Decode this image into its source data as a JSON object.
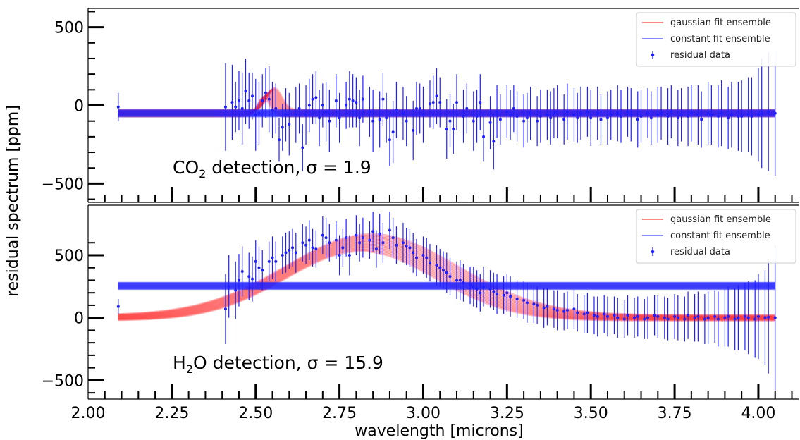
{
  "chart_data": [
    {
      "type": "scatter",
      "panel": "top",
      "annotation": {
        "molecule": "CO",
        "subscript": "2",
        "suffix": " detection, ",
        "sigma_label": "σ = 1.9"
      },
      "ylim": [
        -620,
        620
      ],
      "yticks": [
        -500,
        0,
        500
      ],
      "ytick_labels": [
        "−500",
        "0",
        "500"
      ],
      "xlim": [
        2.0,
        4.12
      ],
      "legend": {
        "placement": "top-right",
        "entries": [
          "gaussian fit ensemble",
          "constant fit ensemble",
          "residual data"
        ]
      },
      "constant_fit": {
        "value": -50,
        "band_width_ppm": 40
      },
      "gaussian_fit": {
        "baseline": -50,
        "amplitude": 130,
        "center": 2.54,
        "sigma_um": 0.02
      },
      "series": [
        {
          "name": "residual data",
          "x": [
            2.09,
            2.41,
            2.43,
            2.44,
            2.45,
            2.46,
            2.47,
            2.48,
            2.49,
            2.5,
            2.51,
            2.52,
            2.53,
            2.54,
            2.55,
            2.56,
            2.57,
            2.58,
            2.59,
            2.6,
            2.62,
            2.63,
            2.64,
            2.65,
            2.66,
            2.67,
            2.68,
            2.69,
            2.7,
            2.71,
            2.72,
            2.74,
            2.75,
            2.77,
            2.78,
            2.79,
            2.8,
            2.81,
            2.82,
            2.84,
            2.85,
            2.87,
            2.88,
            2.89,
            2.9,
            2.91,
            2.92,
            2.94,
            2.95,
            2.97,
            2.98,
            2.99,
            3.0,
            3.02,
            3.03,
            3.04,
            3.05,
            3.07,
            3.08,
            3.09,
            3.1,
            3.12,
            3.13,
            3.15,
            3.16,
            3.17,
            3.18,
            3.2,
            3.21,
            3.22,
            3.23,
            3.25,
            3.26,
            3.27,
            3.28,
            3.3,
            3.31,
            3.32,
            3.34,
            3.35,
            3.37,
            3.38,
            3.39,
            3.4,
            3.42,
            3.43,
            3.45,
            3.46,
            3.47,
            3.49,
            3.5,
            3.52,
            3.53,
            3.55,
            3.56,
            3.58,
            3.59,
            3.61,
            3.62,
            3.64,
            3.65,
            3.67,
            3.68,
            3.7,
            3.71,
            3.73,
            3.74,
            3.76,
            3.77,
            3.79,
            3.8,
            3.82,
            3.83,
            3.85,
            3.86,
            3.88,
            3.89,
            3.91,
            3.92,
            3.94,
            3.95,
            3.97,
            3.98,
            4.0,
            4.01,
            4.03,
            4.05
          ],
          "y": [
            -10,
            -10,
            20,
            -10,
            30,
            -20,
            90,
            30,
            60,
            -60,
            -50,
            30,
            80,
            40,
            -30,
            -20,
            -220,
            -140,
            -60,
            -120,
            -60,
            -20,
            -270,
            -60,
            0,
            40,
            50,
            -80,
            0,
            -40,
            -100,
            30,
            -80,
            0,
            40,
            30,
            20,
            -80,
            40,
            -40,
            -100,
            -90,
            40,
            -80,
            -220,
            -170,
            -30,
            -50,
            -100,
            -160,
            -20,
            -20,
            -60,
            10,
            20,
            60,
            20,
            -150,
            -100,
            -150,
            20,
            -70,
            -20,
            -100,
            -70,
            20,
            -200,
            -110,
            -230,
            -40,
            -90,
            -40,
            -60,
            -20,
            -70,
            -100,
            -80,
            -50,
            -100,
            -70,
            -60,
            -80,
            -50,
            -40,
            -90,
            -40,
            -60,
            -80,
            -50,
            -40,
            -80,
            -50,
            -90,
            -80,
            -60,
            -50,
            -70,
            -40,
            -60,
            -90,
            -70,
            -50,
            -80,
            -60,
            -50,
            -70,
            -40,
            -80,
            -60,
            -70,
            -50,
            -60,
            -90,
            -50,
            -60,
            -70,
            -50,
            -80,
            -60,
            -70,
            -70,
            -60,
            -70,
            -60,
            -50,
            -40,
            -50
          ],
          "yerr": [
            90,
            280,
            240,
            160,
            190,
            230,
            210,
            180,
            150,
            230,
            200,
            170,
            160,
            210,
            180,
            160,
            140,
            150,
            170,
            200,
            180,
            160,
            150,
            190,
            170,
            160,
            170,
            180,
            140,
            190,
            200,
            170,
            160,
            150,
            180,
            170,
            160,
            180,
            150,
            160,
            200,
            180,
            170,
            160,
            170,
            200,
            180,
            170,
            160,
            190,
            170,
            160,
            180,
            150,
            170,
            180,
            160,
            190,
            170,
            160,
            180,
            170,
            160,
            190,
            170,
            180,
            160,
            170,
            180,
            170,
            160,
            170,
            160,
            150,
            160,
            170,
            160,
            170,
            160,
            170,
            160,
            170,
            160,
            170,
            160,
            180,
            170,
            160,
            170,
            160,
            180,
            170,
            160,
            170,
            160,
            180,
            170,
            160,
            170,
            180,
            170,
            160,
            170,
            180,
            170,
            180,
            170,
            180,
            170,
            190,
            180,
            190,
            180,
            200,
            190,
            200,
            210,
            200,
            210,
            220,
            230,
            240,
            250,
            300,
            350,
            380,
            400
          ]
        }
      ]
    },
    {
      "type": "scatter",
      "panel": "bottom",
      "annotation": {
        "molecule": "H",
        "subscript": "2",
        "suffix": "O detection, ",
        "sigma_label": "σ = 15.9"
      },
      "ylim": [
        -650,
        900
      ],
      "yticks": [
        -500,
        0,
        500
      ],
      "ytick_labels": [
        "−500",
        "0",
        "500"
      ],
      "xlim": [
        2.0,
        4.12
      ],
      "xticks": [
        2.0,
        2.25,
        2.5,
        2.75,
        3.0,
        3.25,
        3.5,
        3.75,
        4.0
      ],
      "xtick_labels": [
        "2.00",
        "2.25",
        "2.50",
        "2.75",
        "3.00",
        "3.25",
        "3.50",
        "3.75",
        "4.00"
      ],
      "xlabel": "wavelength [microns]",
      "legend": {
        "placement": "top-right",
        "entries": [
          "gaussian fit ensemble",
          "constant fit ensemble",
          "residual data"
        ]
      },
      "constant_fit": {
        "value": 255,
        "band_width_ppm": 50
      },
      "gaussian_fit": {
        "baseline": 0,
        "amplitude": 600,
        "center": 2.83,
        "sigma_um": 0.24
      },
      "series": [
        {
          "name": "residual data",
          "x": [
            2.09,
            2.41,
            2.42,
            2.44,
            2.45,
            2.46,
            2.48,
            2.49,
            2.5,
            2.51,
            2.52,
            2.54,
            2.55,
            2.56,
            2.58,
            2.59,
            2.6,
            2.61,
            2.62,
            2.64,
            2.65,
            2.66,
            2.67,
            2.68,
            2.7,
            2.71,
            2.72,
            2.74,
            2.75,
            2.76,
            2.77,
            2.78,
            2.8,
            2.81,
            2.82,
            2.84,
            2.85,
            2.86,
            2.87,
            2.88,
            2.9,
            2.91,
            2.92,
            2.94,
            2.95,
            2.96,
            2.97,
            2.98,
            3.0,
            3.01,
            3.02,
            3.04,
            3.05,
            3.06,
            3.07,
            3.08,
            3.1,
            3.11,
            3.12,
            3.14,
            3.15,
            3.16,
            3.17,
            3.18,
            3.2,
            3.21,
            3.22,
            3.24,
            3.25,
            3.26,
            3.28,
            3.3,
            3.31,
            3.33,
            3.34,
            3.36,
            3.37,
            3.39,
            3.4,
            3.42,
            3.43,
            3.45,
            3.46,
            3.48,
            3.49,
            3.51,
            3.52,
            3.54,
            3.55,
            3.57,
            3.58,
            3.6,
            3.61,
            3.63,
            3.64,
            3.66,
            3.67,
            3.69,
            3.7,
            3.72,
            3.73,
            3.75,
            3.76,
            3.78,
            3.79,
            3.81,
            3.82,
            3.84,
            3.85,
            3.87,
            3.88,
            3.9,
            3.91,
            3.93,
            3.94,
            3.96,
            3.97,
            3.99,
            4.0,
            4.02,
            4.03,
            4.05
          ],
          "y": [
            90,
            70,
            250,
            220,
            300,
            370,
            330,
            310,
            450,
            400,
            380,
            450,
            480,
            450,
            500,
            520,
            540,
            560,
            520,
            600,
            580,
            620,
            560,
            550,
            660,
            640,
            600,
            620,
            500,
            560,
            640,
            500,
            660,
            600,
            640,
            620,
            690,
            550,
            670,
            600,
            700,
            640,
            580,
            600,
            570,
            560,
            520,
            480,
            500,
            480,
            440,
            420,
            400,
            380,
            360,
            330,
            300,
            300,
            280,
            260,
            250,
            230,
            200,
            250,
            230,
            210,
            190,
            180,
            200,
            170,
            150,
            140,
            120,
            110,
            100,
            80,
            90,
            70,
            60,
            50,
            60,
            70,
            40,
            30,
            40,
            20,
            10,
            30,
            10,
            20,
            0,
            -10,
            20,
            0,
            10,
            -10,
            0,
            20,
            10,
            0,
            -10,
            10,
            0,
            -10,
            20,
            0,
            10,
            -10,
            0,
            10,
            -10,
            0,
            10,
            -10,
            0,
            10,
            0,
            -10,
            10,
            0,
            5,
            0
          ],
          "yerr": [
            60,
            280,
            250,
            230,
            210,
            200,
            190,
            180,
            170,
            170,
            160,
            160,
            170,
            160,
            150,
            160,
            150,
            150,
            160,
            150,
            150,
            160,
            150,
            150,
            150,
            160,
            150,
            150,
            160,
            150,
            150,
            160,
            160,
            150,
            160,
            150,
            160,
            150,
            160,
            160,
            150,
            160,
            150,
            160,
            150,
            150,
            160,
            150,
            150,
            160,
            150,
            160,
            150,
            150,
            160,
            150,
            150,
            160,
            150,
            150,
            160,
            150,
            150,
            160,
            150,
            150,
            160,
            150,
            150,
            160,
            150,
            150,
            160,
            150,
            150,
            160,
            150,
            150,
            160,
            150,
            150,
            160,
            150,
            150,
            160,
            150,
            160,
            150,
            160,
            150,
            160,
            150,
            160,
            160,
            160,
            160,
            170,
            160,
            170,
            170,
            170,
            180,
            180,
            180,
            190,
            190,
            200,
            200,
            210,
            210,
            220,
            230,
            240,
            250,
            260,
            270,
            290,
            310,
            340,
            380,
            450,
            580
          ]
        }
      ]
    }
  ],
  "figure": {
    "ylabel": "residual spectrum [ppm]",
    "colors": {
      "gaussian": "#ff1a1a",
      "constant": "#1f1fff",
      "data": "#1f1fff",
      "axis": "#000000"
    }
  }
}
